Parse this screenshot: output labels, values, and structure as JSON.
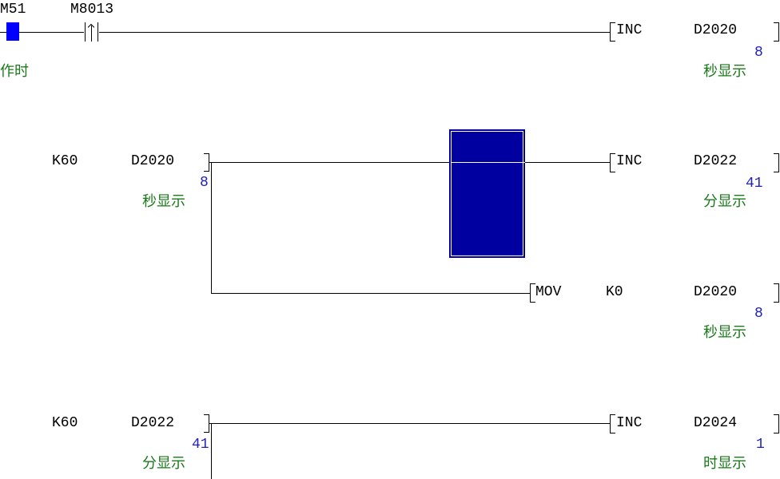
{
  "rung1": {
    "contact1": "M51",
    "contact1_comment": "作时",
    "contact1_state": "on",
    "contact2": "M8013",
    "contact2_type": "rising-edge",
    "instr": "INC",
    "operand": "D2020",
    "operand_value": "8",
    "operand_comment": "秒显示"
  },
  "rung2": {
    "cmp_k": "K60",
    "cmp_dev": "D2020",
    "cmp_value": "8",
    "cmp_comment": "秒显示",
    "instr": "INC",
    "operand": "D2022",
    "operand_value": "41",
    "operand_comment": "分显示",
    "mov": {
      "instr": "MOV",
      "src": "K0",
      "dst": "D2020",
      "dst_value": "8",
      "dst_comment": "秒显示"
    }
  },
  "rung3": {
    "cmp_k": "K60",
    "cmp_dev": "D2022",
    "cmp_value": "41",
    "cmp_comment": "分显示",
    "instr": "INC",
    "operand": "D2024",
    "operand_value": "1",
    "operand_comment": "时显示"
  },
  "colors": {
    "cursor": "#0000a0",
    "contact_on": "#0000ff",
    "value": "#2020c0",
    "comment": "#1a7a1a"
  }
}
